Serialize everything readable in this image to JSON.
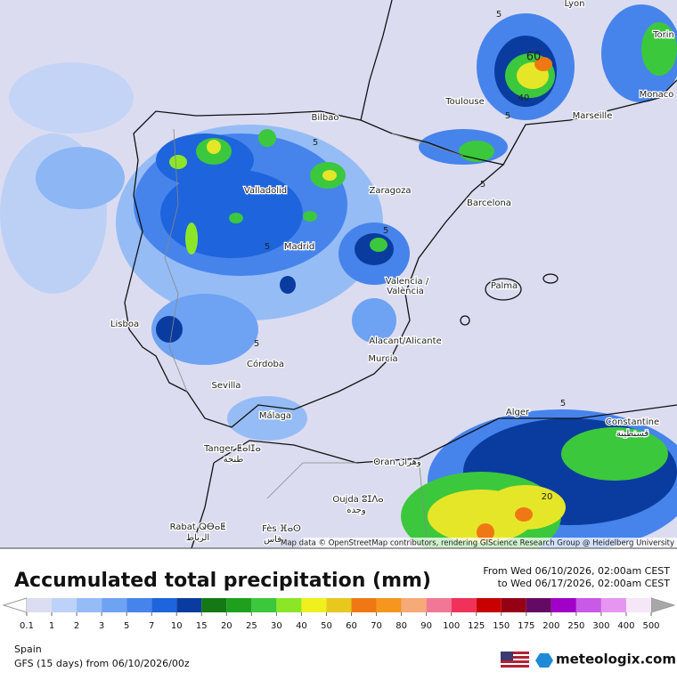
{
  "map": {
    "cities": [
      "Lyon",
      "Torin",
      "Monaco",
      "Toulouse",
      "Marseille",
      "Bilbao",
      "Zaragoza",
      "Barcelona",
      "Valladolid",
      "Madrid",
      "Valencia /",
      "València",
      "Palma",
      "Lisboa",
      "Córdoba",
      "Murcia",
      "Alacant/Alicante",
      "Sevilla",
      "Málaga",
      "Alger",
      "Constantine",
      "قسنطينة",
      "Tanger ⵟⴰⵏⵊⴰ",
      "طنجة",
      "Oran وهران",
      "Oujda ⵓⵊⴷⴰ",
      "وجدة",
      "Rabat ⵕⴱⴰⵟ",
      "الرباط",
      "Fès ⴼⴰⵙ",
      "فاس"
    ],
    "contour_labels": [
      60,
      40,
      5,
      5,
      5,
      5,
      5,
      5,
      5,
      20,
      5
    ],
    "attribution": "Map data © OpenStreetMap contributors, rendering GIScience Research Group @ Heidelberg University"
  },
  "title": "Accumulated total precipitation (mm)",
  "period": [
    "From Wed 06/10/2026, 02:00am CEST",
    "to Wed 06/17/2026, 02:00am CEST"
  ],
  "legend": {
    "values": [
      0.1,
      1,
      2,
      3,
      5,
      7,
      10,
      15,
      20,
      25,
      30,
      40,
      50,
      60,
      70,
      80,
      90,
      100,
      125,
      150,
      175,
      200,
      250,
      300,
      400,
      500
    ],
    "colors": [
      "#dcdcf2",
      "#bcd2f8",
      "#96bcf6",
      "#6ea2f2",
      "#4684ec",
      "#1e64dc",
      "#0a3ca0",
      "#147814",
      "#1ea01e",
      "#3cc83c",
      "#8ce628",
      "#f0f01e",
      "#e6c81e",
      "#f07814",
      "#f5961e",
      "#f5aa78",
      "#f07896",
      "#f0325a",
      "#c80000",
      "#960014",
      "#640a64",
      "#a000c8",
      "#c85ae6",
      "#e696f0",
      "#f5e6f8"
    ],
    "low_color": "#ffffff",
    "high_color": "#a8a8a8"
  },
  "region": "Spain",
  "model": "GFS (15 days) from 06/10/2026/00z",
  "brand": "meteologix.com"
}
